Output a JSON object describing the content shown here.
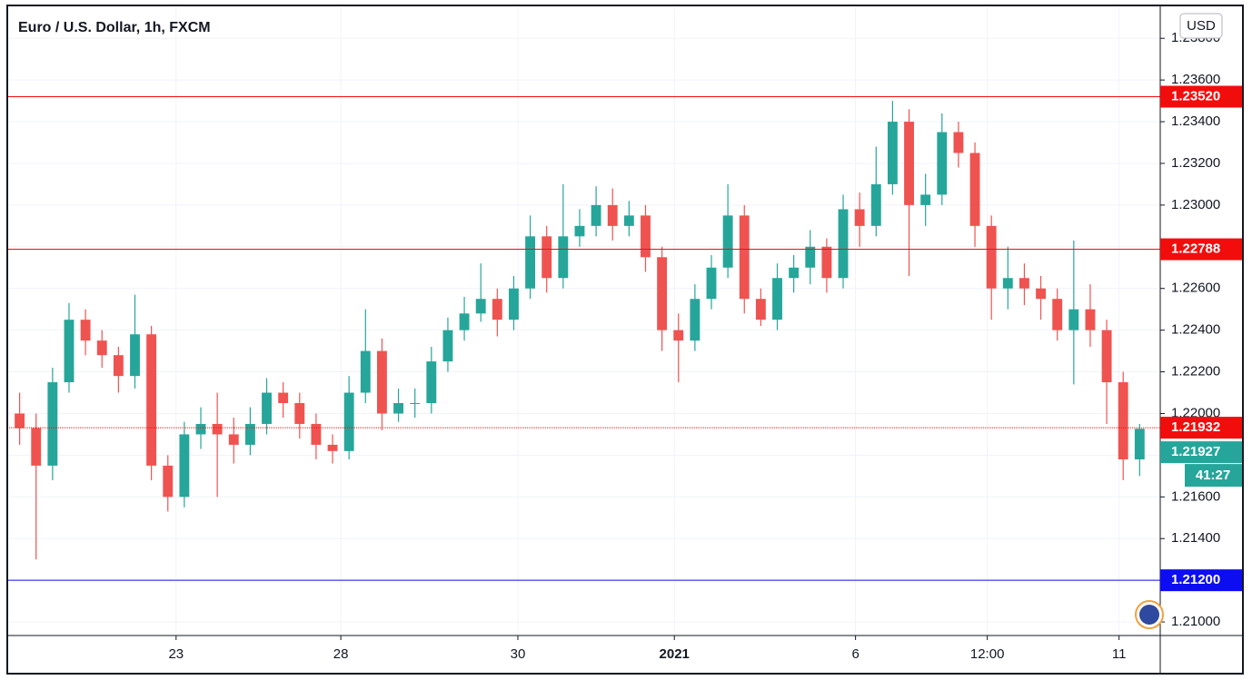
{
  "chart_data": {
    "type": "candlestick",
    "title": "Euro / U.S. Dollar, 1h, FXCM",
    "currency": "USD",
    "up_color": "#26a69a",
    "down_color": "#ef5350",
    "grid": true,
    "xlim": [
      0,
      280
    ],
    "ylim": [
      1.20935,
      1.23949
    ],
    "xticks": [
      {
        "value": 41,
        "label": "23"
      },
      {
        "value": 81,
        "label": "28"
      },
      {
        "value": 124,
        "label": "30"
      },
      {
        "value": 162,
        "label": "2021",
        "bold": true
      },
      {
        "value": 206,
        "label": "6"
      },
      {
        "value": 238,
        "label": "12:00"
      },
      {
        "value": 270,
        "label": "11"
      }
    ],
    "yticks": [
      {
        "value": 1.21,
        "label": "1.21000"
      },
      {
        "value": 1.212,
        "label": "1.21200"
      },
      {
        "value": 1.214,
        "label": "1.21400"
      },
      {
        "value": 1.216,
        "label": "1.21600"
      },
      {
        "value": 1.218,
        "label": "1.21800"
      },
      {
        "value": 1.22,
        "label": "1.22000"
      },
      {
        "value": 1.222,
        "label": "1.22200"
      },
      {
        "value": 1.224,
        "label": "1.22400"
      },
      {
        "value": 1.226,
        "label": "1.22600"
      },
      {
        "value": 1.228,
        "label": "1.22800"
      },
      {
        "value": 1.23,
        "label": "1.23000"
      },
      {
        "value": 1.232,
        "label": "1.23200"
      },
      {
        "value": 1.234,
        "label": "1.23400"
      },
      {
        "value": 1.236,
        "label": "1.23600"
      },
      {
        "value": 1.238,
        "label": "1.23800"
      }
    ],
    "x": [
      3,
      7,
      11,
      15,
      19,
      23,
      27,
      31,
      35,
      39,
      43,
      47,
      51,
      55,
      59,
      63,
      67,
      71,
      75,
      79,
      83,
      87,
      91,
      95,
      99,
      103,
      107,
      111,
      115,
      119,
      123,
      127,
      131,
      135,
      139,
      143,
      147,
      151,
      155,
      159,
      163,
      167,
      171,
      175,
      179,
      183,
      187,
      191,
      195,
      199,
      203,
      207,
      211,
      215,
      219,
      223,
      227,
      231,
      235,
      239,
      243,
      247,
      251,
      255,
      259,
      263,
      267,
      271,
      275
    ],
    "open": [
      1.22,
      1.2193,
      1.2175,
      1.2215,
      1.2245,
      1.2235,
      1.2228,
      1.2218,
      1.2238,
      1.2175,
      1.216,
      1.219,
      1.2195,
      1.219,
      1.2185,
      1.2195,
      1.221,
      1.2205,
      1.2195,
      1.2185,
      1.2182,
      1.221,
      1.223,
      1.22,
      1.2205,
      1.2205,
      1.2225,
      1.224,
      1.2248,
      1.2255,
      1.2245,
      1.226,
      1.2285,
      1.2265,
      1.2285,
      1.229,
      1.23,
      1.229,
      1.2295,
      1.2275,
      1.224,
      1.2235,
      1.2255,
      1.227,
      1.2295,
      1.2255,
      1.2245,
      1.2265,
      1.227,
      1.228,
      1.2265,
      1.2298,
      1.229,
      1.231,
      1.234,
      1.23,
      1.2305,
      1.2335,
      1.2325,
      1.229,
      1.226,
      1.2265,
      1.226,
      1.2255,
      1.224,
      1.225,
      1.224,
      1.2215,
      1.2178
    ],
    "high": [
      1.221,
      1.22,
      1.2222,
      1.2253,
      1.225,
      1.224,
      1.2232,
      1.2257,
      1.2242,
      1.218,
      1.2196,
      1.2203,
      1.221,
      1.2198,
      1.2203,
      1.2217,
      1.2215,
      1.221,
      1.22,
      1.219,
      1.2218,
      1.225,
      1.2236,
      1.2212,
      1.2212,
      1.2232,
      1.2246,
      1.2256,
      1.2272,
      1.226,
      1.2266,
      1.2295,
      1.229,
      1.231,
      1.2298,
      1.2309,
      1.2308,
      1.2302,
      1.23,
      1.228,
      1.2248,
      1.2262,
      1.2276,
      1.231,
      1.23,
      1.226,
      1.2272,
      1.2276,
      1.2288,
      1.2284,
      1.2305,
      1.2306,
      1.2328,
      1.235,
      1.2346,
      1.2315,
      1.2344,
      1.234,
      1.233,
      1.2295,
      1.228,
      1.2272,
      1.2266,
      1.226,
      1.2283,
      1.2262,
      1.2245,
      1.222,
      1.2195
    ],
    "low": [
      1.2185,
      1.213,
      1.2168,
      1.221,
      1.2228,
      1.2222,
      1.221,
      1.2212,
      1.2168,
      1.2153,
      1.2155,
      1.2183,
      1.216,
      1.2176,
      1.218,
      1.219,
      1.2198,
      1.2188,
      1.2178,
      1.2176,
      1.2178,
      1.2205,
      1.2192,
      1.2196,
      1.2198,
      1.22,
      1.222,
      1.2235,
      1.2244,
      1.2237,
      1.224,
      1.2255,
      1.2258,
      1.226,
      1.228,
      1.2285,
      1.2283,
      1.2285,
      1.2268,
      1.223,
      1.2215,
      1.223,
      1.225,
      1.2265,
      1.2248,
      1.2242,
      1.224,
      1.2258,
      1.2262,
      1.2258,
      1.226,
      1.228,
      1.2285,
      1.2305,
      1.2266,
      1.229,
      1.23,
      1.2318,
      1.228,
      1.2245,
      1.225,
      1.2252,
      1.2245,
      1.2235,
      1.2214,
      1.2232,
      1.2195,
      1.2168,
      1.217
    ],
    "close": [
      1.2193,
      1.2175,
      1.2215,
      1.2245,
      1.2235,
      1.2228,
      1.2218,
      1.2238,
      1.2175,
      1.216,
      1.219,
      1.2195,
      1.219,
      1.2185,
      1.2195,
      1.221,
      1.2205,
      1.2195,
      1.2185,
      1.2182,
      1.221,
      1.223,
      1.22,
      1.2205,
      1.2205,
      1.2225,
      1.224,
      1.2248,
      1.2255,
      1.2245,
      1.226,
      1.2285,
      1.2265,
      1.2285,
      1.229,
      1.23,
      1.229,
      1.2295,
      1.2275,
      1.224,
      1.2235,
      1.2255,
      1.227,
      1.2295,
      1.2255,
      1.2245,
      1.2265,
      1.227,
      1.228,
      1.2265,
      1.2298,
      1.229,
      1.231,
      1.234,
      1.23,
      1.2305,
      1.2335,
      1.2325,
      1.229,
      1.226,
      1.2265,
      1.226,
      1.2255,
      1.224,
      1.225,
      1.224,
      1.2215,
      1.2178,
      1.21927
    ],
    "price_lines": [
      {
        "value": 1.2352,
        "label": "1.23520",
        "color": "#f20d0d"
      },
      {
        "value": 1.22788,
        "label": "1.22788",
        "color": "#f20d0d"
      },
      {
        "value": 1.21932,
        "label": "1.21932",
        "color": "#f20d0d",
        "dotted": true
      },
      {
        "value": 1.212,
        "label": "1.21200",
        "color": "#0d0df2"
      }
    ],
    "last_price": {
      "value": 1.21927,
      "label": "1.21927",
      "color": "#26a69a"
    },
    "countdown": "41:27"
  }
}
